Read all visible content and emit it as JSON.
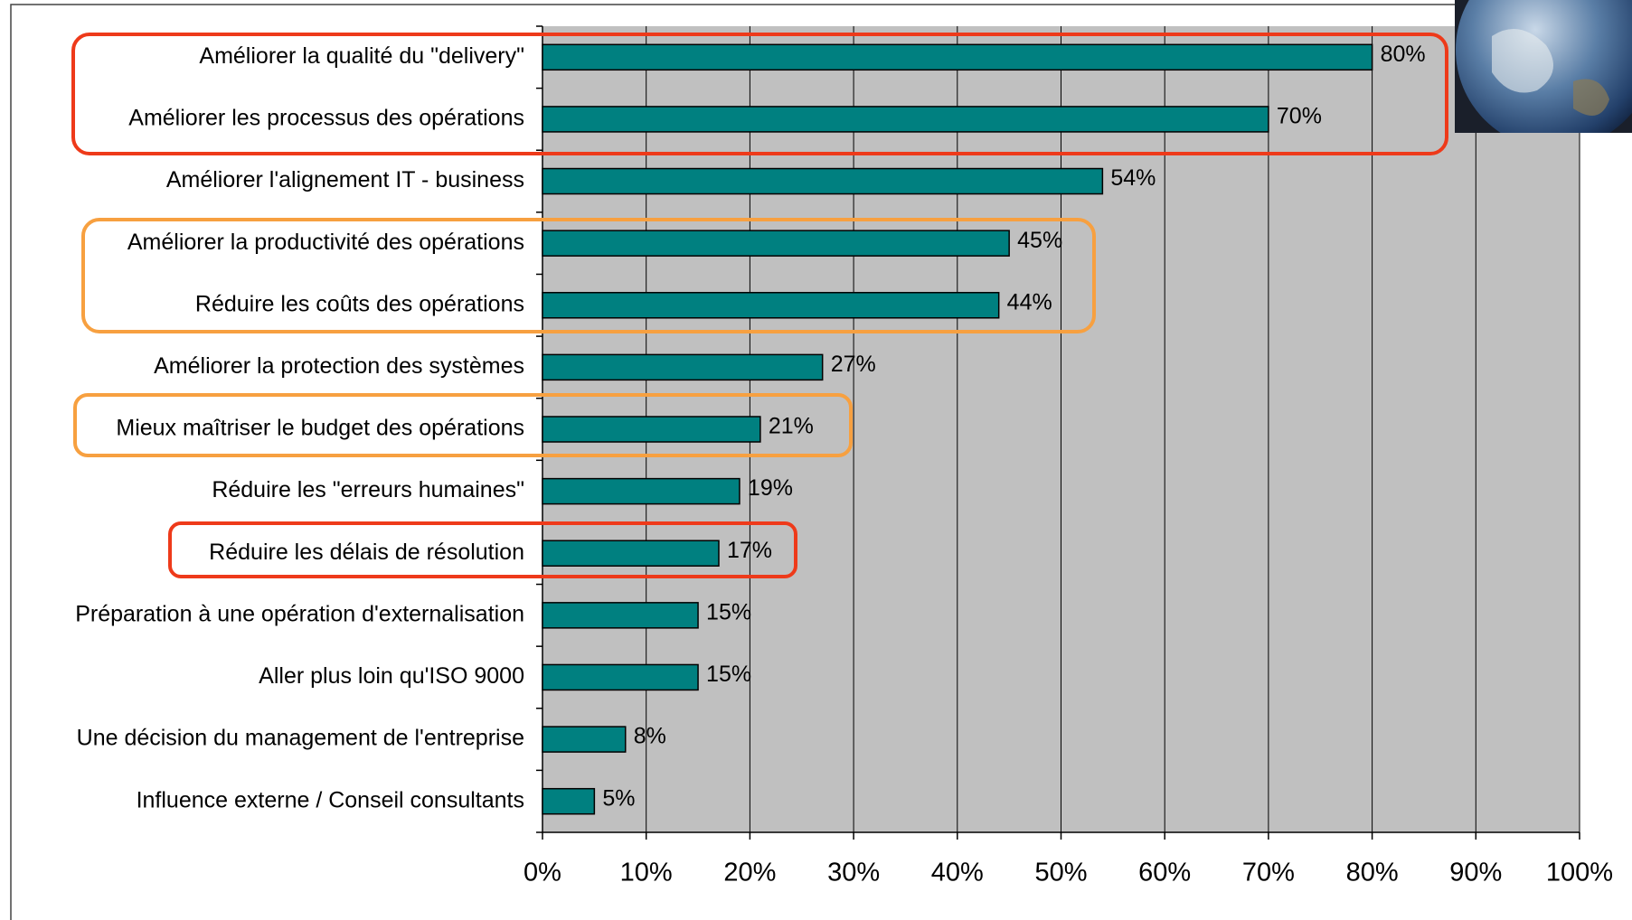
{
  "chart_data": {
    "type": "bar",
    "orientation": "horizontal",
    "categories": [
      "Améliorer la qualité du \"delivery\"",
      "Améliorer les processus des opérations",
      "Améliorer l'alignement IT - business",
      "Améliorer la productivité des opérations",
      "Réduire les coûts des opérations",
      "Améliorer la protection des systèmes",
      "Mieux maîtriser le budget des opérations",
      "Réduire les \"erreurs humaines\"",
      "Réduire les délais de résolution",
      "Préparation à une opération d'externalisation",
      "Aller plus loin qu'ISO 9000",
      "Une décision du management de l'entreprise",
      "Influence externe / Conseil consultants"
    ],
    "values": [
      80,
      70,
      54,
      45,
      44,
      27,
      21,
      19,
      17,
      15,
      15,
      8,
      5
    ],
    "value_labels": [
      "80%",
      "70%",
      "54%",
      "45%",
      "44%",
      "27%",
      "21%",
      "19%",
      "17%",
      "15%",
      "15%",
      "8%",
      "5%"
    ],
    "color": "#008080",
    "xlim": [
      0,
      100
    ],
    "xticks": [
      {
        "value": 0,
        "label": "0%"
      },
      {
        "value": 10,
        "label": "10%"
      },
      {
        "value": 20,
        "label": "20%"
      },
      {
        "value": 30,
        "label": "30%"
      },
      {
        "value": 40,
        "label": "40%"
      },
      {
        "value": 50,
        "label": "50%"
      },
      {
        "value": 60,
        "label": "60%"
      },
      {
        "value": 70,
        "label": "70%"
      },
      {
        "value": 80,
        "label": "80%"
      },
      {
        "value": 90,
        "label": "90%"
      },
      {
        "value": 100,
        "label": "100%"
      }
    ],
    "grid": true
  }
}
